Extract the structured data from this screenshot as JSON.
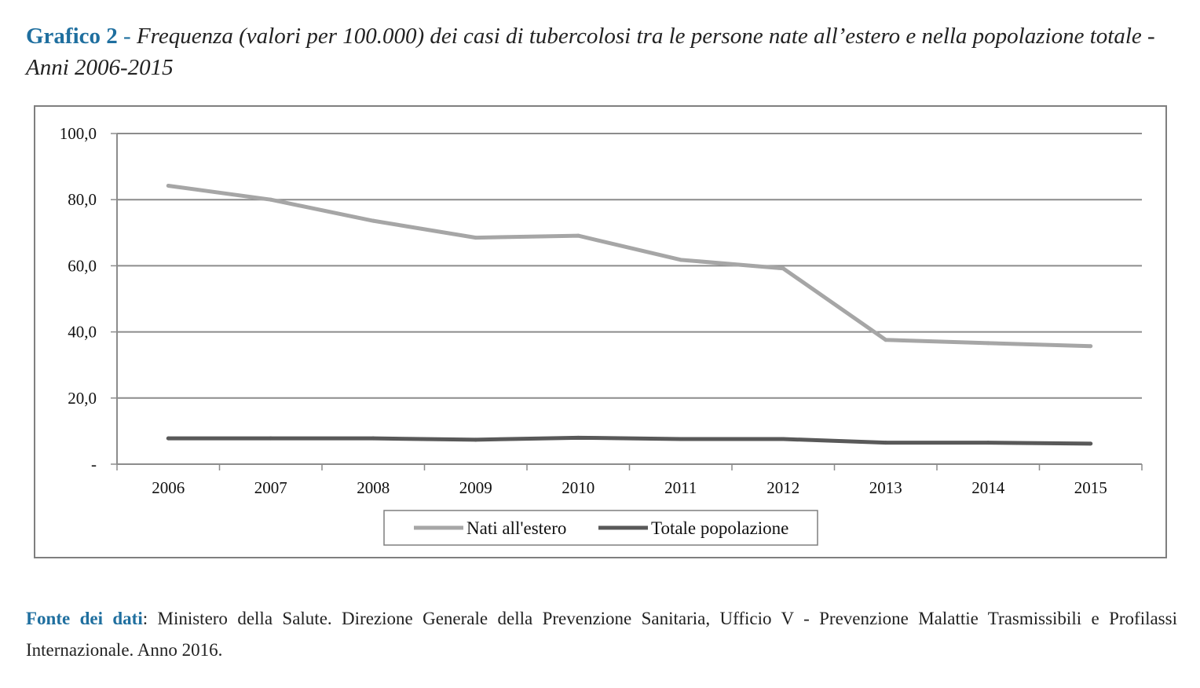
{
  "figure": {
    "label": "Grafico 2",
    "separator": "-",
    "title": "Frequenza (valori per 100.000) dei casi di tubercolosi tra le persone nate all’estero e nella popolazione totale - Anni 2006-2015"
  },
  "source": {
    "label": "Fonte dei dati",
    "text": ": Ministero della Salute. Direzione Generale della Prevenzione Sanitaria, Ufficio V - Prevenzione Malattie Trasmissibili e Profilassi Internazionale. Anno 2016."
  },
  "chart_data": {
    "type": "line",
    "title": "",
    "xlabel": "",
    "ylabel": "",
    "categories": [
      "2006",
      "2007",
      "2008",
      "2009",
      "2010",
      "2011",
      "2012",
      "2013",
      "2014",
      "2015"
    ],
    "series": [
      {
        "name": "Nati all'estero",
        "color": "#a6a6a6",
        "values": [
          84.2,
          80.0,
          73.6,
          68.5,
          69.1,
          61.8,
          59.2,
          37.6,
          36.6,
          35.7
        ]
      },
      {
        "name": "Totale popolazione",
        "color": "#595959",
        "values": [
          7.8,
          7.8,
          7.8,
          7.4,
          8.0,
          7.6,
          7.6,
          6.5,
          6.5,
          6.2
        ]
      }
    ],
    "yticks": [
      0,
      20,
      40,
      60,
      80,
      100
    ],
    "ytick_labels": [
      "-",
      "20,0",
      "40,0",
      "60,0",
      "80,0",
      "100,0"
    ],
    "ylim": [
      0,
      100
    ],
    "grid": true,
    "legend": "bottom-center"
  }
}
